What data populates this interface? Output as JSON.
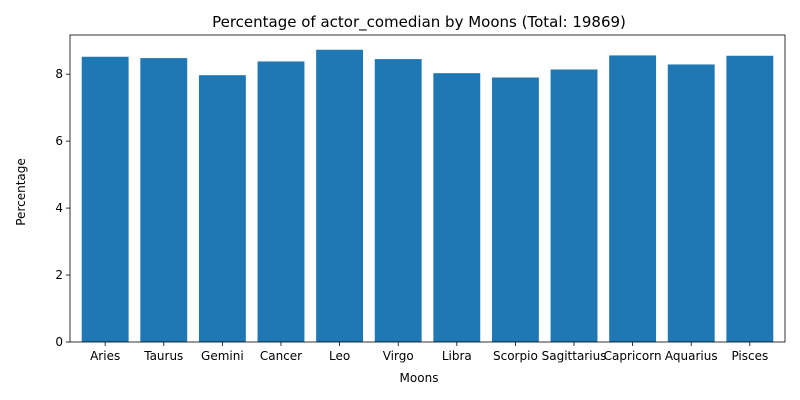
{
  "chart_data": {
    "type": "bar",
    "title": "Percentage of actor_comedian by Moons (Total: 19869)",
    "xlabel": "Moons",
    "ylabel": "Percentage",
    "categories": [
      "Aries",
      "Taurus",
      "Gemini",
      "Cancer",
      "Leo",
      "Virgo",
      "Libra",
      "Scorpio",
      "Sagittarius",
      "Capricorn",
      "Aquarius",
      "Pisces"
    ],
    "values": [
      8.52,
      8.48,
      7.97,
      8.38,
      8.73,
      8.45,
      8.03,
      7.9,
      8.14,
      8.56,
      8.29,
      8.55
    ],
    "ylim": [
      0,
      9.17
    ],
    "yticks": [
      0,
      2,
      4,
      6,
      8
    ],
    "bar_color": "#1f77b4",
    "grid": false,
    "legend": "none"
  }
}
